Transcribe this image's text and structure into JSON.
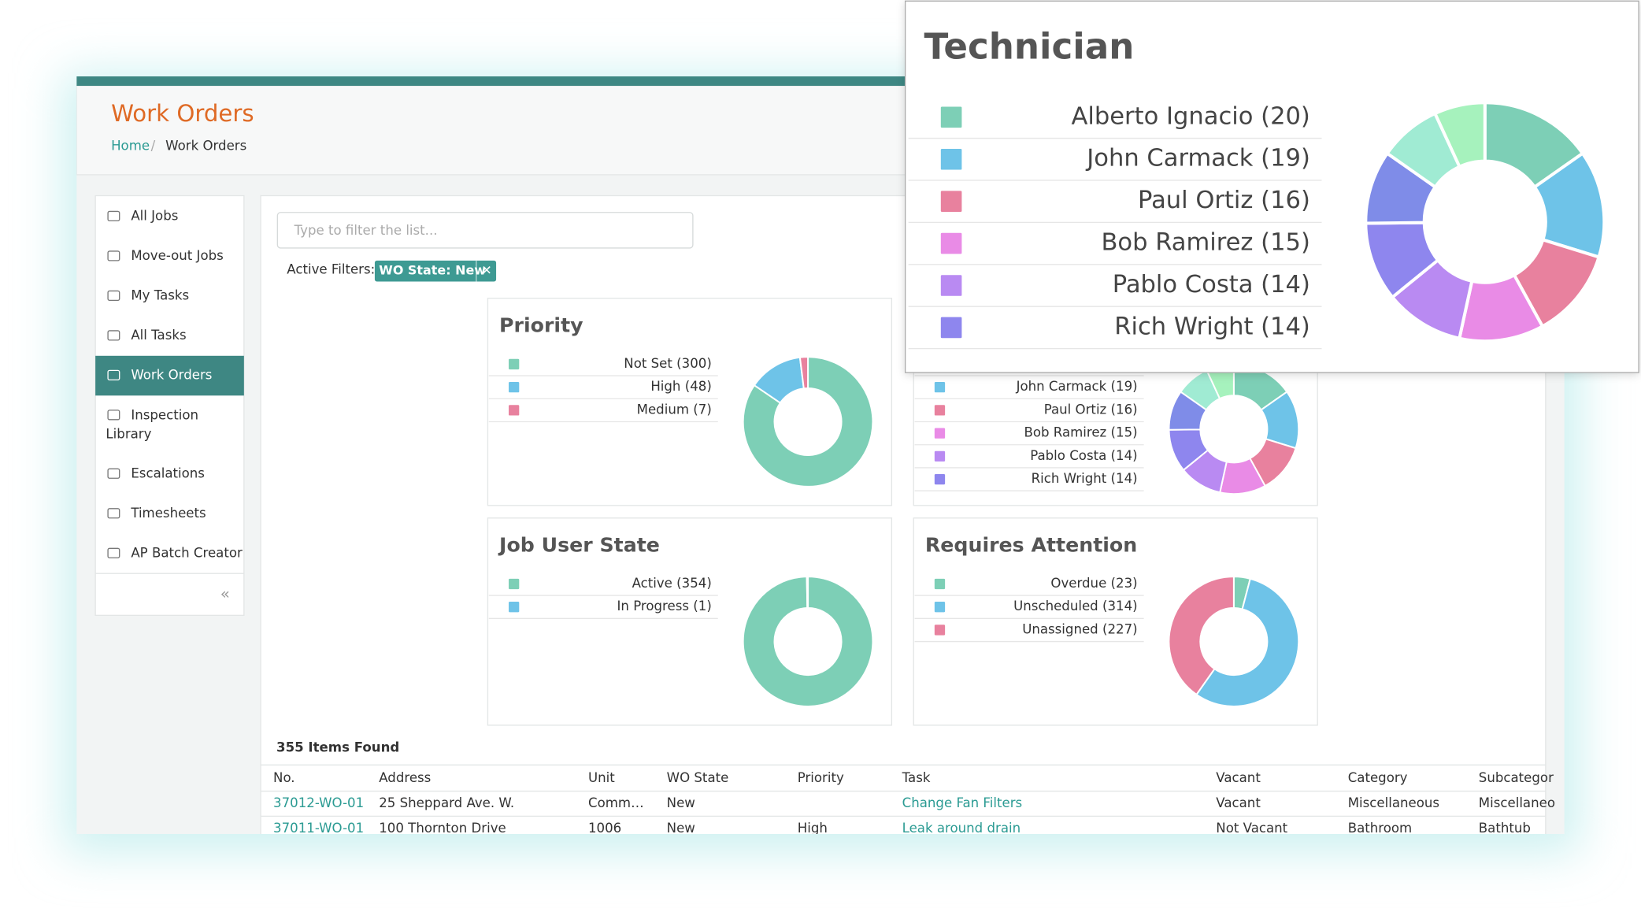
{
  "header": {
    "title": "Work Orders",
    "breadcrumb": [
      "Home",
      "Work Orders"
    ]
  },
  "sidebar": {
    "items": [
      {
        "label": "All Jobs"
      },
      {
        "label": "Move-out Jobs"
      },
      {
        "label": "My Tasks"
      },
      {
        "label": "All Tasks"
      },
      {
        "label": "Work Orders",
        "active": true
      },
      {
        "label": "Inspection Library"
      },
      {
        "label": "Escalations"
      },
      {
        "label": "Timesheets"
      },
      {
        "label": "AP Batch Creator"
      }
    ]
  },
  "filter": {
    "placeholder": "Type to filter the list...",
    "active_filters_label": "Active Filters:",
    "chips": [
      "WO State: New"
    ]
  },
  "charts": [
    {
      "type": "donut",
      "title": "Priority",
      "categories": [
        "Not Set (300)",
        "High (48)",
        "Medium (7)"
      ],
      "values": [
        300,
        48,
        7
      ],
      "colors": [
        "#7dcfb6",
        "#6ec3e8",
        "#e8819e"
      ]
    },
    {
      "type": "donut",
      "title": "Technician",
      "categories": [
        "Alberto Ignacio (20)",
        "John Carmack (19)",
        "Paul Ortiz (16)",
        "Bob Ramirez (15)",
        "Pablo Costa (14)",
        "Rich Wright (14)",
        null,
        null,
        null
      ],
      "values": [
        20,
        19,
        16,
        15,
        14,
        14,
        13,
        11,
        9
      ],
      "colors": [
        "#7dcfb6",
        "#6ec3e8",
        "#e8819e",
        "#e98be6",
        "#b98af2",
        "#8e86ee",
        "#7f8ce8",
        "#a0ebd3",
        "#a6f2bd"
      ]
    },
    {
      "type": "donut",
      "title": "Job User State",
      "categories": [
        "Active (354)",
        "In Progress (1)"
      ],
      "values": [
        354,
        1
      ],
      "colors": [
        "#7dcfb6",
        "#6ec3e8"
      ]
    },
    {
      "type": "donut",
      "title": "Requires Attention",
      "categories": [
        "Overdue (23)",
        "Unscheduled (314)",
        "Unassigned (227)"
      ],
      "values": [
        23,
        314,
        227
      ],
      "colors": [
        "#7dcfb6",
        "#6ec3e8",
        "#e8819e"
      ]
    }
  ],
  "table": {
    "count_label": "355 Items Found",
    "columns": [
      "No.",
      "Address",
      "Unit",
      "WO State",
      "Priority",
      "Task",
      "Vacant",
      "Category",
      "Subcategor"
    ],
    "rows": [
      [
        "37012-WO-01",
        "25 Sheppard Ave. W.",
        "Comm…",
        "New",
        null,
        "Change Fan Filters",
        "Vacant",
        "Miscellaneous",
        "Miscellaneo"
      ],
      [
        "37011-WO-01",
        "100 Thornton Drive",
        "1006",
        "New",
        "High",
        "Leak around drain",
        "Not Vacant",
        "Bathroom",
        "Bathtub"
      ]
    ]
  }
}
